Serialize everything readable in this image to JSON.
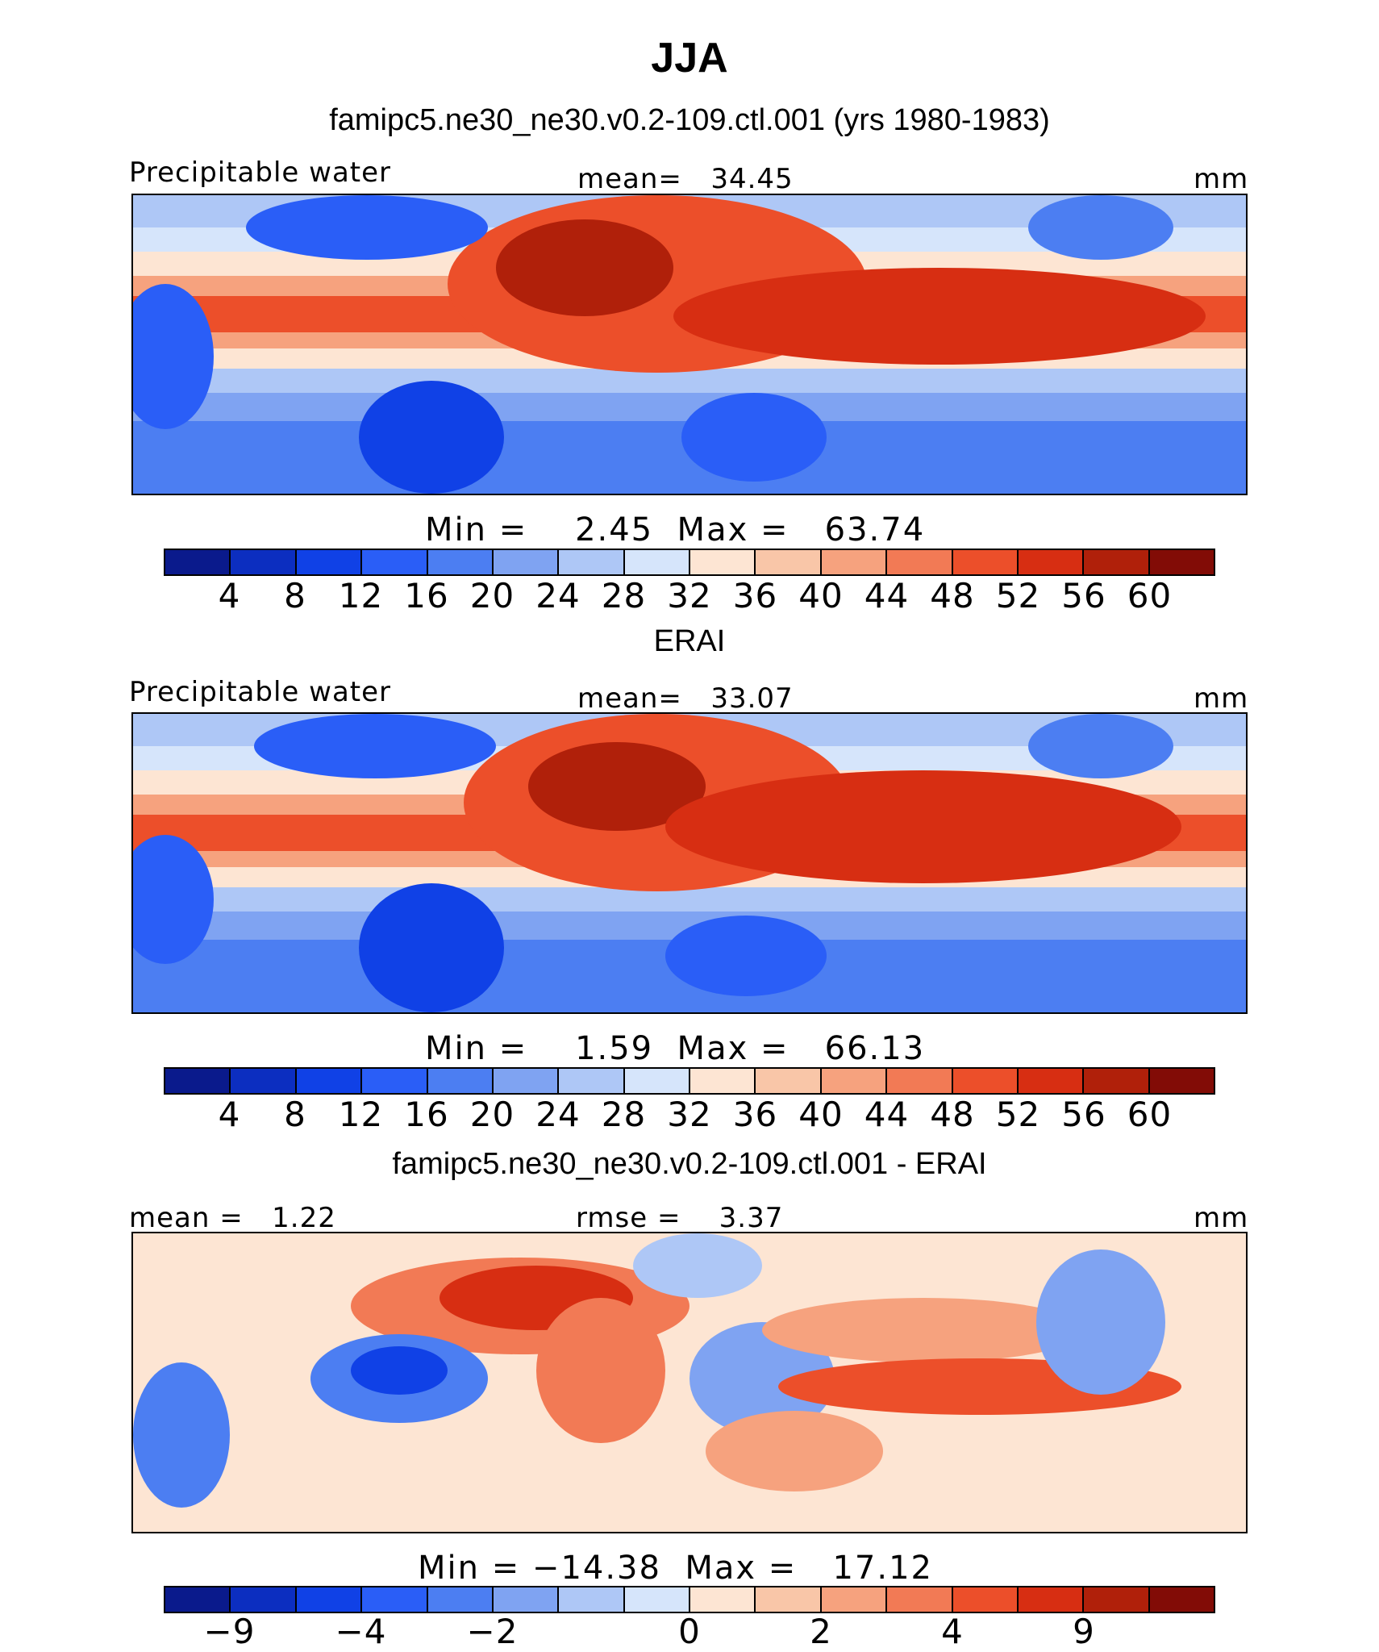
{
  "season": "JJA",
  "panels": [
    {
      "heading": "famipc5.ne30_ne30.v0.2-109.ctl.001 (yrs 1980-1983)",
      "left_label": "Precipitable water",
      "center_label": "mean=   34.45",
      "right_label": "mm",
      "minmax_label": "Min =    2.45  Max =   63.74",
      "colorbar": {
        "colors": [
          "#0a1a8c",
          "#0c2ec0",
          "#1041e6",
          "#2a5ef7",
          "#4c7ef2",
          "#7fa3f2",
          "#aec7f6",
          "#d6e5fb",
          "#fde5d3",
          "#f9c6a8",
          "#f6a27e",
          "#f27a55",
          "#ec4f2a",
          "#d72e12",
          "#b0200a",
          "#820c06"
        ],
        "tick_labels": [
          "4",
          "8",
          "12",
          "16",
          "20",
          "24",
          "28",
          "32",
          "36",
          "40",
          "44",
          "48",
          "52",
          "56",
          "60"
        ]
      }
    },
    {
      "heading": "ERAI",
      "left_label": "Precipitable water",
      "center_label": "mean=   33.07",
      "right_label": "mm",
      "minmax_label": "Min =    1.59  Max =   66.13",
      "colorbar": {
        "colors": [
          "#0a1a8c",
          "#0c2ec0",
          "#1041e6",
          "#2a5ef7",
          "#4c7ef2",
          "#7fa3f2",
          "#aec7f6",
          "#d6e5fb",
          "#fde5d3",
          "#f9c6a8",
          "#f6a27e",
          "#f27a55",
          "#ec4f2a",
          "#d72e12",
          "#b0200a",
          "#820c06"
        ],
        "tick_labels": [
          "4",
          "8",
          "12",
          "16",
          "20",
          "24",
          "28",
          "32",
          "36",
          "40",
          "44",
          "48",
          "52",
          "56",
          "60"
        ]
      }
    },
    {
      "heading": "famipc5.ne30_ne30.v0.2-109.ctl.001 - ERAI",
      "left_label": "mean =   1.22",
      "center_label": "rmse =    3.37",
      "right_label": "mm",
      "minmax_label": "Min = −14.38  Max =   17.12",
      "colorbar": {
        "colors": [
          "#0a1a8c",
          "#0c2ec0",
          "#1041e6",
          "#2a5ef7",
          "#4c7ef2",
          "#7fa3f2",
          "#aec7f6",
          "#d6e5fb",
          "#fde5d3",
          "#f9c6a8",
          "#f6a27e",
          "#f27a55",
          "#ec4f2a",
          "#d72e12",
          "#b0200a",
          "#820c06"
        ],
        "tick_labels": [
          "−9",
          "−4",
          "−2",
          "0",
          "2",
          "4",
          "9"
        ]
      }
    }
  ]
}
